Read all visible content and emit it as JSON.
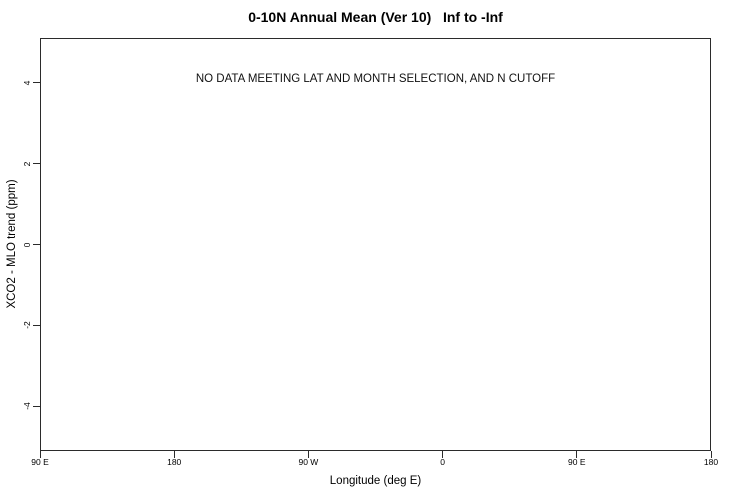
{
  "chart_data": {
    "type": "scatter",
    "title": "0-10N Annual Mean (Ver 10)   Inf to -Inf",
    "xlabel": "Longitude (deg E)",
    "ylabel": "XCO2 - MLO trend (ppm)",
    "xlim": [
      90,
      540
    ],
    "ylim": [
      -5.1,
      5.1
    ],
    "x_ticks": [
      {
        "value": 90,
        "label": "90 E"
      },
      {
        "value": 180,
        "label": "180"
      },
      {
        "value": 270,
        "label": "90 W"
      },
      {
        "value": 360,
        "label": "0"
      },
      {
        "value": 450,
        "label": "90 E"
      },
      {
        "value": 540,
        "label": "180"
      }
    ],
    "y_ticks": [
      {
        "value": 4,
        "label": "4"
      },
      {
        "value": 2,
        "label": "2"
      },
      {
        "value": 0,
        "label": "0"
      },
      {
        "value": -2,
        "label": "-2"
      },
      {
        "value": -4,
        "label": "-4"
      }
    ],
    "grid": false,
    "legend": false,
    "series": [],
    "annotations": [
      "NO DATA MEETING LAT AND MONTH SELECTION, AND N CUTOFF"
    ],
    "colors": {
      "axis_line": "#2b2b2b",
      "text": "#000000",
      "background": "#ffffff"
    }
  }
}
